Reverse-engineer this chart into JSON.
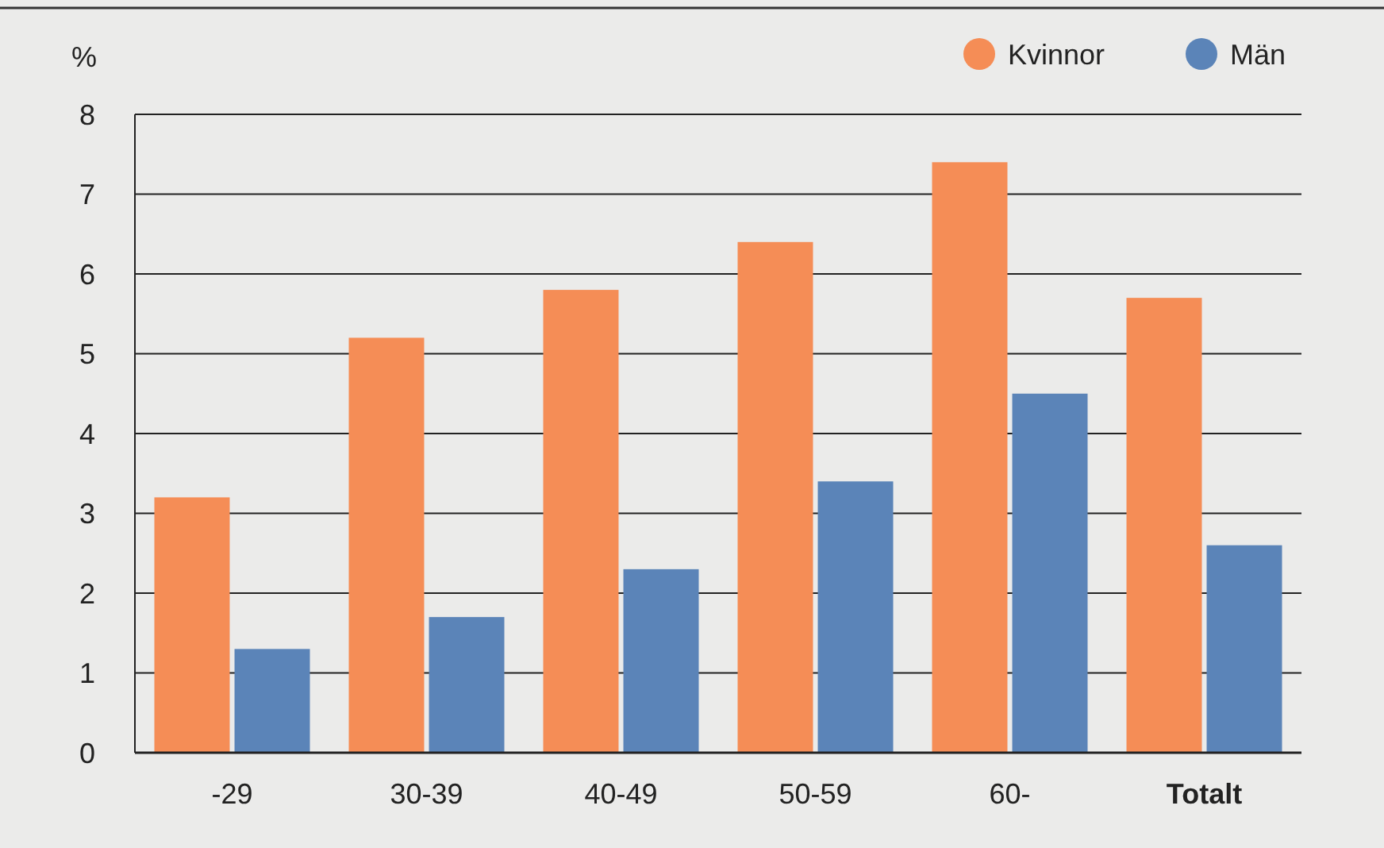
{
  "chart_data": {
    "type": "bar",
    "ylabel": "%",
    "categories": [
      "-29",
      "30-39",
      "40-49",
      "50-59",
      "60-",
      "Totalt"
    ],
    "series": [
      {
        "name": "Kvinnor",
        "color": "#f58d56",
        "values": [
          3.2,
          5.2,
          5.8,
          6.4,
          7.4,
          5.7
        ]
      },
      {
        "name": "Män",
        "color": "#5b84b8",
        "values": [
          1.3,
          1.7,
          2.3,
          3.4,
          4.5,
          2.6
        ]
      }
    ],
    "ylim": [
      0,
      8
    ],
    "yticks": [
      0,
      1,
      2,
      3,
      4,
      5,
      6,
      7,
      8
    ],
    "grid": "y",
    "legend": "top right"
  }
}
